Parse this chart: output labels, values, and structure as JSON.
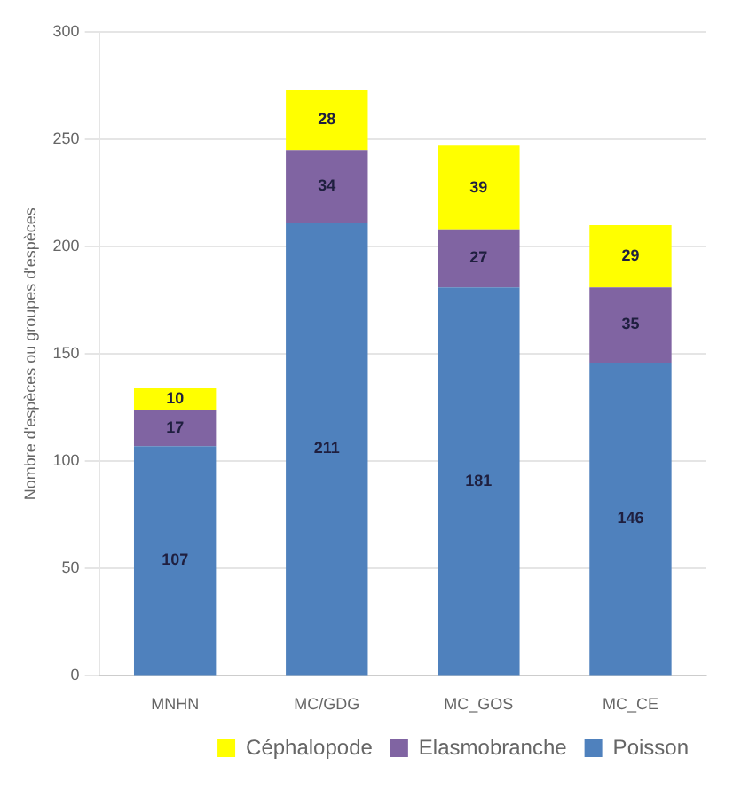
{
  "chart_data": {
    "type": "bar",
    "stacked": true,
    "ylabel": "Nombre d'espèces ou groupes d'espèces",
    "categories": [
      "MNHN",
      "MC/GDG",
      "MC_GOS",
      "MC_CE"
    ],
    "series": [
      {
        "name": "Poisson",
        "color": "#4f81bd",
        "values": [
          107,
          211,
          181,
          146
        ]
      },
      {
        "name": "Elasmobranche",
        "color": "#8064a2",
        "values": [
          17,
          34,
          27,
          35
        ]
      },
      {
        "name": "Céphalopode",
        "color": "#ffff00",
        "values": [
          10,
          28,
          39,
          29
        ]
      }
    ],
    "ylim": [
      0,
      300
    ],
    "yticks": [
      0,
      50,
      100,
      150,
      200,
      250,
      300
    ],
    "grid": "y",
    "legend": "bottom right",
    "data_labels": true
  }
}
